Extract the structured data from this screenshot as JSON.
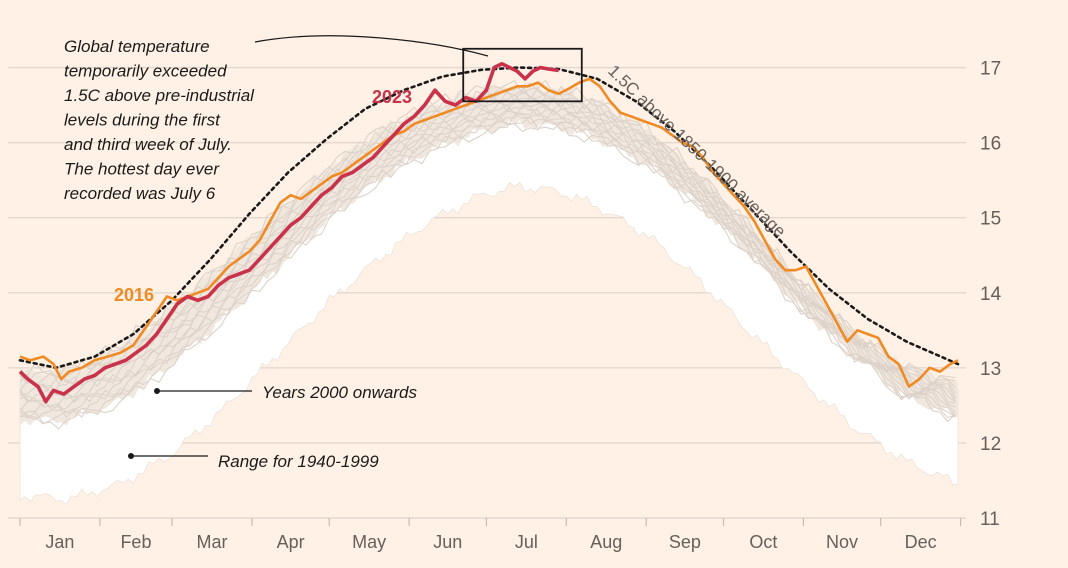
{
  "chart_data": {
    "type": "line",
    "title": "",
    "xlabel": "",
    "ylabel": "",
    "ylim": [
      11,
      17.5
    ],
    "y_ticks": [
      11,
      12,
      13,
      14,
      15,
      16,
      17
    ],
    "months": [
      "Jan",
      "Feb",
      "Mar",
      "Apr",
      "May",
      "Jun",
      "Jul",
      "Aug",
      "Sep",
      "Oct",
      "Nov",
      "Dec"
    ],
    "x_unit": "day_of_year",
    "colors": {
      "y2023": "#c9324a",
      "y2016": "#f08a24",
      "average": "#1a1a1a",
      "recent_years": "#ddd2c9",
      "range_fill": "#ffffff",
      "grid": "#e3d8ce",
      "box": "#1a1a1a"
    },
    "range_1940_1999": {
      "label": "Range for 1940-1999",
      "lower": [
        [
          1,
          11.3
        ],
        [
          20,
          11.25
        ],
        [
          40,
          11.45
        ],
        [
          60,
          11.85
        ],
        [
          80,
          12.45
        ],
        [
          100,
          13.15
        ],
        [
          120,
          13.85
        ],
        [
          140,
          14.45
        ],
        [
          160,
          14.95
        ],
        [
          180,
          15.3
        ],
        [
          195,
          15.42
        ],
        [
          210,
          15.35
        ],
        [
          225,
          15.15
        ],
        [
          245,
          14.75
        ],
        [
          265,
          14.15
        ],
        [
          285,
          13.45
        ],
        [
          305,
          12.8
        ],
        [
          325,
          12.2
        ],
        [
          345,
          11.75
        ],
        [
          365,
          11.45
        ]
      ],
      "upper": [
        [
          1,
          12.75
        ],
        [
          20,
          12.8
        ],
        [
          40,
          13.05
        ],
        [
          60,
          13.55
        ],
        [
          80,
          14.15
        ],
        [
          100,
          14.85
        ],
        [
          120,
          15.5
        ],
        [
          140,
          16.05
        ],
        [
          160,
          16.45
        ],
        [
          180,
          16.65
        ],
        [
          195,
          16.7
        ],
        [
          210,
          16.65
        ],
        [
          225,
          16.5
        ],
        [
          245,
          16.1
        ],
        [
          265,
          15.5
        ],
        [
          285,
          14.8
        ],
        [
          305,
          14.05
        ],
        [
          325,
          13.4
        ],
        [
          345,
          12.95
        ],
        [
          365,
          12.7
        ]
      ]
    },
    "years_2000_onwards": {
      "label": "Years 2000 onwards",
      "band_low": [
        [
          1,
          12.3
        ],
        [
          20,
          12.3
        ],
        [
          40,
          12.55
        ],
        [
          60,
          13.05
        ],
        [
          80,
          13.65
        ],
        [
          100,
          14.3
        ],
        [
          120,
          14.95
        ],
        [
          140,
          15.5
        ],
        [
          160,
          15.9
        ],
        [
          180,
          16.15
        ],
        [
          195,
          16.25
        ],
        [
          210,
          16.2
        ],
        [
          225,
          16.05
        ],
        [
          245,
          15.7
        ],
        [
          265,
          15.15
        ],
        [
          285,
          14.5
        ],
        [
          305,
          13.75
        ],
        [
          325,
          13.15
        ],
        [
          345,
          12.6
        ],
        [
          365,
          12.35
        ]
      ],
      "band_high": [
        [
          1,
          12.95
        ],
        [
          20,
          12.95
        ],
        [
          40,
          13.3
        ],
        [
          60,
          13.8
        ],
        [
          80,
          14.4
        ],
        [
          100,
          15.05
        ],
        [
          120,
          15.65
        ],
        [
          140,
          16.15
        ],
        [
          160,
          16.5
        ],
        [
          180,
          16.7
        ],
        [
          195,
          16.75
        ],
        [
          210,
          16.7
        ],
        [
          225,
          16.55
        ],
        [
          245,
          16.15
        ],
        [
          265,
          15.55
        ],
        [
          285,
          14.85
        ],
        [
          305,
          14.1
        ],
        [
          325,
          13.45
        ],
        [
          345,
          13.0
        ],
        [
          365,
          12.8
        ]
      ]
    },
    "series": [
      {
        "name": "2016",
        "label": "2016",
        "values": [
          [
            1,
            13.15
          ],
          [
            5,
            13.1
          ],
          [
            10,
            13.15
          ],
          [
            14,
            13.05
          ],
          [
            17,
            12.85
          ],
          [
            20,
            12.95
          ],
          [
            25,
            13.0
          ],
          [
            30,
            13.1
          ],
          [
            35,
            13.15
          ],
          [
            40,
            13.2
          ],
          [
            45,
            13.3
          ],
          [
            48,
            13.45
          ],
          [
            50,
            13.55
          ],
          [
            55,
            13.8
          ],
          [
            58,
            13.95
          ],
          [
            62,
            13.9
          ],
          [
            66,
            13.95
          ],
          [
            70,
            14.0
          ],
          [
            74,
            14.05
          ],
          [
            78,
            14.2
          ],
          [
            82,
            14.35
          ],
          [
            86,
            14.45
          ],
          [
            90,
            14.55
          ],
          [
            94,
            14.7
          ],
          [
            98,
            14.95
          ],
          [
            102,
            15.2
          ],
          [
            106,
            15.3
          ],
          [
            110,
            15.25
          ],
          [
            114,
            15.35
          ],
          [
            118,
            15.45
          ],
          [
            122,
            15.55
          ],
          [
            126,
            15.6
          ],
          [
            130,
            15.7
          ],
          [
            134,
            15.8
          ],
          [
            138,
            15.9
          ],
          [
            142,
            16.0
          ],
          [
            146,
            16.1
          ],
          [
            150,
            16.15
          ],
          [
            154,
            16.25
          ],
          [
            158,
            16.3
          ],
          [
            162,
            16.35
          ],
          [
            166,
            16.4
          ],
          [
            170,
            16.45
          ],
          [
            174,
            16.5
          ],
          [
            178,
            16.55
          ],
          [
            182,
            16.6
          ],
          [
            186,
            16.65
          ],
          [
            190,
            16.7
          ],
          [
            194,
            16.75
          ],
          [
            198,
            16.75
          ],
          [
            202,
            16.8
          ],
          [
            206,
            16.7
          ],
          [
            210,
            16.65
          ],
          [
            214,
            16.72
          ],
          [
            218,
            16.8
          ],
          [
            222,
            16.85
          ],
          [
            226,
            16.75
          ],
          [
            230,
            16.55
          ],
          [
            234,
            16.4
          ],
          [
            238,
            16.35
          ],
          [
            242,
            16.3
          ],
          [
            246,
            16.25
          ],
          [
            250,
            16.2
          ],
          [
            254,
            16.1
          ],
          [
            258,
            16.0
          ],
          [
            262,
            15.95
          ],
          [
            266,
            15.8
          ],
          [
            270,
            15.6
          ],
          [
            274,
            15.45
          ],
          [
            278,
            15.3
          ],
          [
            282,
            15.15
          ],
          [
            286,
            14.95
          ],
          [
            290,
            14.7
          ],
          [
            294,
            14.45
          ],
          [
            298,
            14.3
          ],
          [
            302,
            14.3
          ],
          [
            306,
            14.35
          ],
          [
            310,
            14.1
          ],
          [
            314,
            13.85
          ],
          [
            318,
            13.6
          ],
          [
            322,
            13.35
          ],
          [
            326,
            13.5
          ],
          [
            330,
            13.45
          ],
          [
            334,
            13.4
          ],
          [
            338,
            13.15
          ],
          [
            342,
            13.05
          ],
          [
            346,
            12.75
          ],
          [
            350,
            12.85
          ],
          [
            354,
            13.0
          ],
          [
            358,
            12.95
          ],
          [
            362,
            13.05
          ],
          [
            365,
            13.1
          ]
        ]
      },
      {
        "name": "2023",
        "label": "2023",
        "values": [
          [
            1,
            12.95
          ],
          [
            4,
            12.85
          ],
          [
            8,
            12.75
          ],
          [
            11,
            12.55
          ],
          [
            14,
            12.7
          ],
          [
            18,
            12.65
          ],
          [
            22,
            12.75
          ],
          [
            26,
            12.85
          ],
          [
            30,
            12.9
          ],
          [
            34,
            13.0
          ],
          [
            38,
            13.05
          ],
          [
            42,
            13.1
          ],
          [
            46,
            13.2
          ],
          [
            50,
            13.3
          ],
          [
            54,
            13.45
          ],
          [
            58,
            13.65
          ],
          [
            62,
            13.85
          ],
          [
            66,
            13.95
          ],
          [
            70,
            13.9
          ],
          [
            74,
            13.95
          ],
          [
            78,
            14.1
          ],
          [
            82,
            14.2
          ],
          [
            86,
            14.25
          ],
          [
            90,
            14.3
          ],
          [
            94,
            14.45
          ],
          [
            98,
            14.6
          ],
          [
            102,
            14.75
          ],
          [
            106,
            14.9
          ],
          [
            110,
            15.0
          ],
          [
            114,
            15.15
          ],
          [
            118,
            15.3
          ],
          [
            122,
            15.4
          ],
          [
            126,
            15.55
          ],
          [
            130,
            15.6
          ],
          [
            134,
            15.7
          ],
          [
            138,
            15.8
          ],
          [
            142,
            15.95
          ],
          [
            146,
            16.1
          ],
          [
            150,
            16.25
          ],
          [
            154,
            16.35
          ],
          [
            158,
            16.5
          ],
          [
            162,
            16.7
          ],
          [
            166,
            16.55
          ],
          [
            170,
            16.5
          ],
          [
            174,
            16.6
          ],
          [
            178,
            16.55
          ],
          [
            182,
            16.7
          ],
          [
            185,
            17.0
          ],
          [
            188,
            17.05
          ],
          [
            191,
            17.0
          ],
          [
            194,
            16.95
          ],
          [
            197,
            16.85
          ],
          [
            200,
            16.95
          ],
          [
            203,
            17.0
          ],
          [
            206,
            16.98
          ],
          [
            210,
            16.96
          ]
        ]
      },
      {
        "name": "1.5C above 1850-1900 average",
        "label": "1.5C above 1850-1900 average",
        "style": "dotted",
        "values": [
          [
            1,
            13.1
          ],
          [
            15,
            13.0
          ],
          [
            30,
            13.15
          ],
          [
            45,
            13.45
          ],
          [
            60,
            13.9
          ],
          [
            75,
            14.45
          ],
          [
            90,
            15.05
          ],
          [
            105,
            15.6
          ],
          [
            120,
            16.05
          ],
          [
            135,
            16.45
          ],
          [
            150,
            16.7
          ],
          [
            165,
            16.88
          ],
          [
            180,
            16.97
          ],
          [
            195,
            17.0
          ],
          [
            210,
            16.98
          ],
          [
            225,
            16.85
          ],
          [
            240,
            16.55
          ],
          [
            255,
            16.15
          ],
          [
            270,
            15.65
          ],
          [
            285,
            15.1
          ],
          [
            300,
            14.55
          ],
          [
            315,
            14.05
          ],
          [
            330,
            13.65
          ],
          [
            345,
            13.35
          ],
          [
            365,
            13.05
          ]
        ]
      }
    ],
    "highlight_box": {
      "x_start": 173,
      "x_end": 219,
      "y_low": 16.55,
      "y_high": 17.25
    },
    "annotations": {
      "main_note": [
        "Global temperature",
        "temporarily exceeded",
        "1.5C above pre-industrial",
        "levels during the first",
        "and third week of July.",
        "The hottest day ever",
        "recorded was July 6"
      ],
      "years_2000_label": "Years 2000 onwards",
      "range_label": "Range for 1940-1999",
      "label_2016": "2016",
      "label_2023": "2023"
    }
  }
}
